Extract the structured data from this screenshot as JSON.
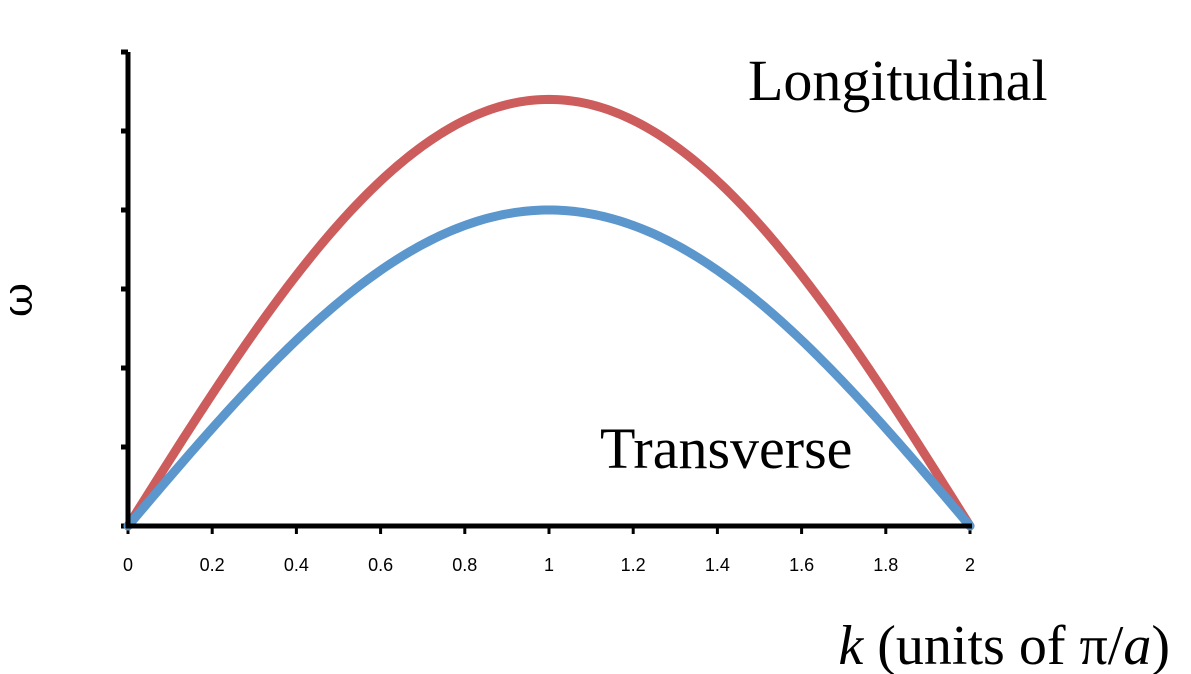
{
  "chart_data": {
    "type": "line",
    "xlabel": {
      "var": "k",
      "prefix": " (units of ",
      "pi": "π",
      "slash": "/",
      "a": "a",
      "suffix": ")"
    },
    "ylabel": "ω",
    "xlim": [
      0,
      2
    ],
    "ylim": [
      0,
      1.2
    ],
    "x_ticks": [
      "0",
      "0.2",
      "0.4",
      "0.6",
      "0.8",
      "1",
      "1.2",
      "1.4",
      "1.6",
      "1.8",
      "2"
    ],
    "y_tick_count": 7,
    "grid": false,
    "series": [
      {
        "name": "Longitudinal",
        "color": "#cd5c5c",
        "amplitude": 1.08,
        "function": "amplitude*sin(pi*k/2)"
      },
      {
        "name": "Transverse",
        "color": "#5b96cc",
        "amplitude": 0.8,
        "function": "amplitude*sin(pi*k/2)"
      }
    ]
  }
}
